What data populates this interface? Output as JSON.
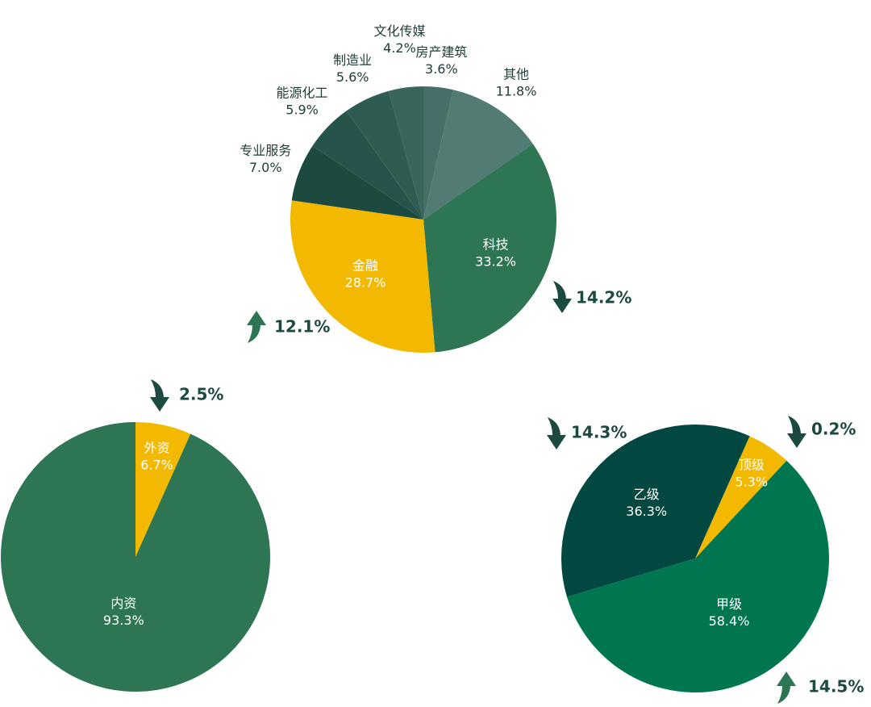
{
  "chart_data": [
    {
      "type": "pie",
      "categories": [
        "房产建筑",
        "其他",
        "科技",
        "金融",
        "专业服务",
        "能源化工",
        "制造业",
        "文化传媒"
      ],
      "values": [
        3.6,
        11.8,
        33.2,
        28.7,
        7.0,
        5.9,
        5.6,
        4.2
      ],
      "value_labels": [
        "3.6%",
        "11.8%",
        "33.2%",
        "28.7%",
        "7.0%",
        "5.9%",
        "5.6%",
        "4.2%"
      ],
      "colors": [
        "#476f6a",
        "#517b73",
        "#2d7553",
        "#f2b900",
        "#1d4a40",
        "#26534b",
        "#2e5c53",
        "#38655c"
      ],
      "startangle": 0,
      "annotations": [
        {
          "text": "14.2%",
          "direction": "down"
        },
        {
          "text": "12.1%",
          "direction": "up"
        }
      ]
    },
    {
      "type": "pie",
      "categories": [
        "外资",
        "内资"
      ],
      "values": [
        6.7,
        93.3
      ],
      "value_labels": [
        "6.7%",
        "93.3%"
      ],
      "colors": [
        "#f2b900",
        "#2d7553"
      ],
      "startangle": 0,
      "annotations": [
        {
          "text": "2.5%",
          "direction": "down"
        }
      ]
    },
    {
      "type": "pie",
      "categories": [
        "顶级",
        "甲级",
        "乙级"
      ],
      "values": [
        5.3,
        58.4,
        36.3
      ],
      "value_labels": [
        "5.3%",
        "58.4%",
        "36.3%"
      ],
      "colors": [
        "#f2b900",
        "#007650",
        "#024840"
      ],
      "startangle": 24,
      "annotations": [
        {
          "text": "14.5%",
          "direction": "up"
        },
        {
          "text": "14.3%",
          "direction": "down"
        },
        {
          "text": "0.2%",
          "direction": "down"
        }
      ]
    }
  ]
}
